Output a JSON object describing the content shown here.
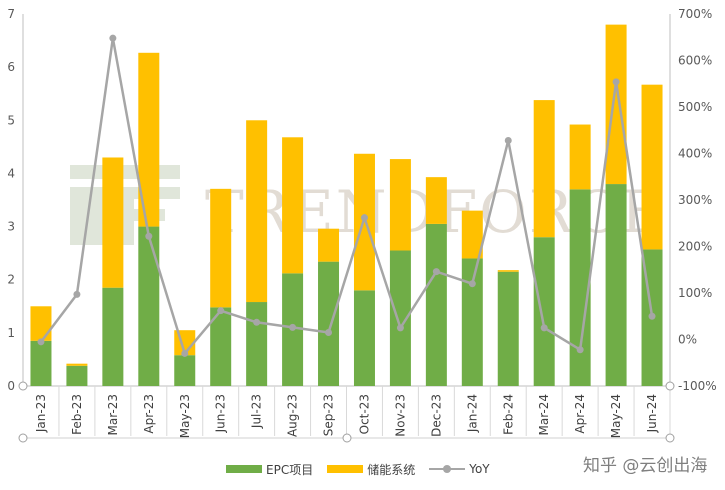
{
  "chart_data": {
    "type": "bar",
    "stacked": true,
    "categories": [
      "Jan-23",
      "Feb-23",
      "Mar-23",
      "Apr-23",
      "May-23",
      "Jun-23",
      "Jul-23",
      "Aug-23",
      "Sep-23",
      "Oct-23",
      "Nov-23",
      "Dec-23",
      "Jan-24",
      "Feb-24",
      "Mar-24",
      "Apr-24",
      "May-24",
      "Jun-24"
    ],
    "series": [
      {
        "name": "EPC项目",
        "type": "bar",
        "axis": "left",
        "color": "#70ad47",
        "values": [
          0.85,
          0.38,
          1.85,
          3.0,
          0.58,
          1.48,
          1.58,
          2.12,
          2.34,
          1.8,
          2.55,
          3.05,
          2.4,
          2.15,
          2.8,
          3.7,
          3.8,
          2.57
        ]
      },
      {
        "name": "储能系统",
        "type": "bar",
        "axis": "left",
        "color": "#ffc000",
        "values": [
          0.65,
          0.04,
          2.45,
          3.27,
          0.47,
          2.23,
          3.42,
          2.56,
          0.62,
          2.57,
          1.72,
          0.88,
          0.9,
          0.03,
          2.58,
          1.22,
          3.0,
          3.1
        ]
      },
      {
        "name": "YoY",
        "type": "line",
        "axis": "right",
        "color": "#a6a6a6",
        "unit": "%",
        "values": [
          -5,
          97,
          648,
          222,
          -30,
          62,
          37,
          26,
          15,
          262,
          25,
          146,
          120,
          428,
          25,
          -22,
          554,
          50
        ]
      }
    ],
    "y_left": {
      "min": 0,
      "max": 7,
      "ticks": [
        "0",
        "1",
        "2",
        "3",
        "4",
        "5",
        "6",
        "7"
      ]
    },
    "y_right": {
      "min": -100,
      "max": 700,
      "ticks": [
        "-100%",
        "0%",
        "100%",
        "200%",
        "300%",
        "400%",
        "500%",
        "600%",
        "700%"
      ]
    },
    "legend": {
      "position": "bottom",
      "labels": [
        "EPC项目",
        "储能系统",
        "YoY"
      ]
    }
  },
  "watermark": {
    "text": "TRENDFORCE"
  },
  "credit": "知乎 @云创出海"
}
